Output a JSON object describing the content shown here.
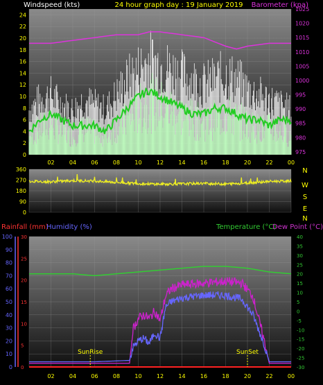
{
  "header": {
    "left_label": "Windspeed (kts)",
    "title": "24 hour graph day : 19 January 2019",
    "right_label": "Barometer (kpa)"
  },
  "colors": {
    "gust": "#ffffff",
    "wind": "#b8ffb8",
    "wind_avg": "#22cc22",
    "barometer": "#dd33dd",
    "direction": "#eeee22",
    "temperature": "#33cc33",
    "dewpoint": "#cc22cc",
    "humidity": "#6666ff",
    "rainfall": "#ff2222",
    "tick_yellow": "#ffff00",
    "tick_blue": "#6666ff",
    "tick_red": "#ff3333",
    "tick_green": "#33cc33",
    "tick_magenta": "#cc33cc"
  },
  "x_ticks": [
    "02",
    "04",
    "06",
    "08",
    "10",
    "12",
    "14",
    "16",
    "18",
    "20",
    "22",
    "00"
  ],
  "compass": [
    "N",
    "W",
    "S",
    "E",
    "N"
  ],
  "lower_labels": {
    "rainfall": "Rainfall (mm)",
    "humidity": "Humidity (%)",
    "temperature": "Temperature (°C)",
    "dewpoint": "Dew Point (°C)",
    "sunrise": "SunRise",
    "sunset": "SunSet"
  },
  "chart_data": [
    {
      "type": "line",
      "name": "wind",
      "x_unit": "hour",
      "xlim": [
        0,
        24
      ],
      "ylim": [
        0,
        25
      ],
      "y_ticks": [
        0,
        2,
        4,
        6,
        8,
        10,
        12,
        14,
        16,
        18,
        20,
        22,
        24
      ],
      "y2lim": [
        974,
        1025
      ],
      "y2_ticks": [
        975,
        980,
        985,
        990,
        995,
        1000,
        1005,
        1010,
        1015,
        1020,
        1025
      ],
      "series": [
        {
          "key": "gust",
          "x": [
            0,
            1,
            2,
            3,
            4,
            5,
            6,
            7,
            8,
            9,
            10,
            11,
            12,
            13,
            14,
            15,
            16,
            17,
            18,
            19,
            20,
            21,
            22,
            23,
            24
          ],
          "values": [
            9,
            11,
            12,
            10,
            9,
            11,
            10,
            9,
            12,
            15,
            17,
            19,
            18,
            17,
            16,
            15,
            14,
            15,
            16,
            15,
            13,
            12,
            11,
            10,
            9
          ]
        },
        {
          "key": "wind",
          "x": [
            0,
            1,
            2,
            3,
            4,
            5,
            6,
            7,
            8,
            9,
            10,
            11,
            12,
            13,
            14,
            15,
            16,
            17,
            18,
            19,
            20,
            21,
            22,
            23,
            24
          ],
          "values": [
            4,
            6,
            7,
            5,
            4,
            6,
            5,
            4,
            6,
            8,
            10,
            12,
            11,
            10,
            9,
            8,
            7,
            8,
            9,
            8,
            7,
            6,
            6,
            5,
            4
          ]
        },
        {
          "key": "wind_avg",
          "x": [
            0,
            1,
            2,
            3,
            4,
            5,
            6,
            7,
            8,
            9,
            10,
            11,
            12,
            13,
            14,
            15,
            16,
            17,
            18,
            19,
            20,
            21,
            22,
            23,
            24
          ],
          "values": [
            4,
            6,
            7,
            6,
            5,
            5,
            5,
            4,
            6,
            8,
            10,
            11,
            10,
            9,
            8,
            7,
            7,
            8,
            8,
            7,
            6,
            6,
            5,
            6,
            6
          ]
        },
        {
          "key": "barometer",
          "axis": "y2",
          "x": [
            0,
            2,
            4,
            6,
            8,
            10,
            11,
            12,
            14,
            16,
            18,
            19,
            20,
            22,
            24
          ],
          "values": [
            1013,
            1013,
            1014,
            1015,
            1016,
            1016,
            1017,
            1017,
            1016,
            1015,
            1012,
            1011,
            1012,
            1013,
            1013
          ]
        }
      ]
    },
    {
      "type": "line",
      "name": "wind_direction",
      "x_unit": "hour",
      "xlim": [
        0,
        24
      ],
      "ylim": [
        0,
        360
      ],
      "y_ticks": [
        0,
        90,
        180,
        270,
        360
      ],
      "series": [
        {
          "key": "direction",
          "x": [
            0,
            2,
            4,
            6,
            8,
            10,
            12,
            14,
            16,
            18,
            20,
            22,
            24
          ],
          "values": [
            260,
            255,
            265,
            262,
            250,
            240,
            235,
            238,
            242,
            236,
            245,
            258,
            262
          ]
        }
      ]
    },
    {
      "type": "line",
      "name": "temp_humidity",
      "x_unit": "hour",
      "xlim": [
        0,
        24
      ],
      "ylim": [
        0,
        100
      ],
      "y_ticks": [
        0,
        10,
        20,
        30,
        40,
        50,
        60,
        70,
        80,
        90,
        100
      ],
      "rain_ticks": [
        0,
        5,
        10,
        15,
        20,
        25,
        30
      ],
      "temp_lim": [
        -30,
        40
      ],
      "temp_ticks": [
        -30,
        -25,
        -20,
        -15,
        -10,
        -5,
        0,
        5,
        10,
        15,
        20,
        25,
        30,
        35,
        40
      ],
      "sunrise_hour": 5.6,
      "sunset_hour": 20.0,
      "series": [
        {
          "key": "temperature",
          "axis": "temp",
          "x": [
            0,
            2,
            4,
            6,
            8,
            10,
            12,
            14,
            16,
            18,
            20,
            22,
            24
          ],
          "values": [
            20,
            20,
            20,
            19,
            20,
            21,
            22,
            23,
            24,
            24,
            23,
            21,
            20
          ]
        },
        {
          "key": "dewpoint",
          "axis": "temp",
          "x": [
            0,
            6,
            9.2,
            9.5,
            10,
            10.5,
            11,
            11.5,
            12,
            12.5,
            13,
            14,
            16,
            18,
            19.5,
            20.5,
            21.5,
            22,
            24
          ],
          "values": [
            -28,
            -28,
            -28,
            -10,
            -4,
            -2,
            -4,
            0,
            -5,
            8,
            12,
            14,
            15,
            16,
            15,
            8,
            -15,
            -28,
            -28
          ]
        },
        {
          "key": "humidity",
          "axis": "y",
          "x": [
            0,
            6,
            9.2,
            9.5,
            10,
            10.5,
            11,
            11.5,
            12,
            12.5,
            13,
            14,
            16,
            18,
            19.5,
            20.5,
            21.5,
            22,
            24
          ],
          "values": [
            4,
            4,
            5,
            15,
            20,
            22,
            18,
            26,
            22,
            46,
            50,
            53,
            55,
            55,
            52,
            40,
            18,
            4,
            4
          ]
        },
        {
          "key": "rainfall",
          "axis": "rain",
          "x": [
            0,
            24
          ],
          "values": [
            0,
            0
          ]
        }
      ]
    }
  ]
}
